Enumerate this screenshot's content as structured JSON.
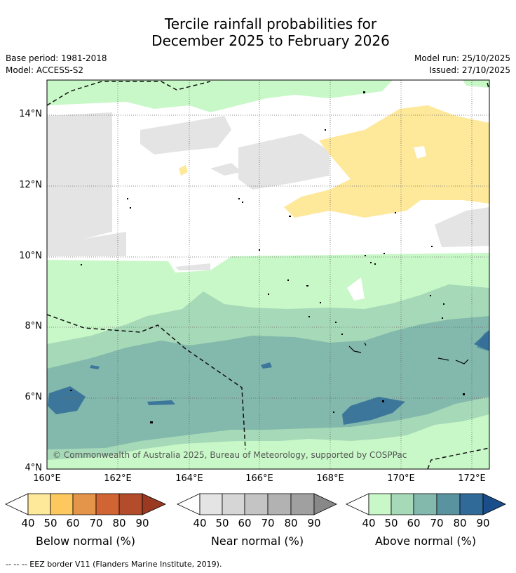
{
  "header": {
    "title_line1": "Tercile rainfall probabilities for",
    "title_line2": "December 2025 to February 2026",
    "base_period": "Base period: 1981-2018",
    "model": "Model: ACCESS-S2",
    "model_run": "Model run: 25/10/2025",
    "issued": "Issued: 27/10/2025"
  },
  "map": {
    "lat_labels": [
      "14°N",
      "12°N",
      "10°N",
      "8°N",
      "6°N",
      "4°N"
    ],
    "lon_labels": [
      "160°E",
      "162°E",
      "164°E",
      "166°E",
      "168°E",
      "170°E",
      "172°E"
    ],
    "copyright": "© Commonwealth of Australia 2025, Bureau of Meteorology, supported by COSPPac"
  },
  "legends": {
    "below": {
      "title": "Below normal (%)",
      "ticks": [
        "40",
        "50",
        "60",
        "70",
        "80",
        "90"
      ],
      "colors": [
        "#fee89a",
        "#fdc85e",
        "#e4954a",
        "#d06533",
        "#b24c2a",
        "#9a3a22"
      ]
    },
    "near": {
      "title": "Near normal (%)",
      "ticks": [
        "40",
        "50",
        "60",
        "70",
        "80",
        "90"
      ],
      "colors": [
        "#e4e4e4",
        "#d6d6d6",
        "#c4c4c4",
        "#b2b2b2",
        "#a0a0a0",
        "#888888"
      ]
    },
    "above": {
      "title": "Above normal (%)",
      "ticks": [
        "40",
        "50",
        "60",
        "70",
        "80",
        "90"
      ],
      "colors": [
        "#c8f8c8",
        "#a6d9b7",
        "#83b8ac",
        "#5a93a0",
        "#306a98",
        "#1a4e8a"
      ]
    }
  },
  "footer": "--  --  -- EEZ border V11 (Flanders Marine Institute, 2019)."
}
